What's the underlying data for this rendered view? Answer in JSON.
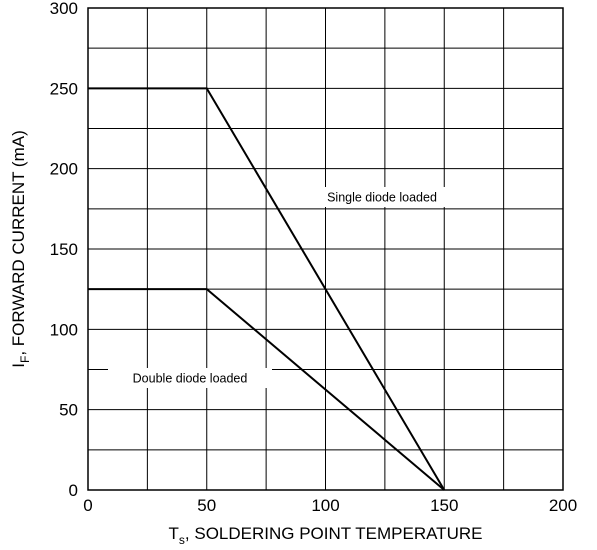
{
  "chart_data": {
    "type": "line",
    "title": "",
    "xlabel": {
      "main": "T",
      "sub": "s",
      "rest": ", SOLDERING POINT TEMPERATURE"
    },
    "ylabel": {
      "main": "I",
      "sub": "F",
      "rest": ", FORWARD CURRENT (mA)"
    },
    "xlim": [
      0,
      200
    ],
    "ylim": [
      0,
      300
    ],
    "x_ticks": [
      0,
      50,
      100,
      150,
      200
    ],
    "y_ticks": [
      0,
      50,
      100,
      150,
      200,
      250,
      300
    ],
    "x_grid_step": 25,
    "y_grid_step": 25,
    "grid": true,
    "series": [
      {
        "name": "Single diode loaded",
        "points": [
          [
            0,
            250
          ],
          [
            50,
            250
          ],
          [
            150,
            0
          ]
        ]
      },
      {
        "name": "Double diode loaded",
        "points": [
          [
            0,
            125
          ],
          [
            50,
            125
          ],
          [
            150,
            0
          ]
        ]
      }
    ],
    "annotations": [
      {
        "text": "Single diode loaded",
        "series": 0
      },
      {
        "text": "Double diode loaded",
        "series": 1
      }
    ]
  }
}
